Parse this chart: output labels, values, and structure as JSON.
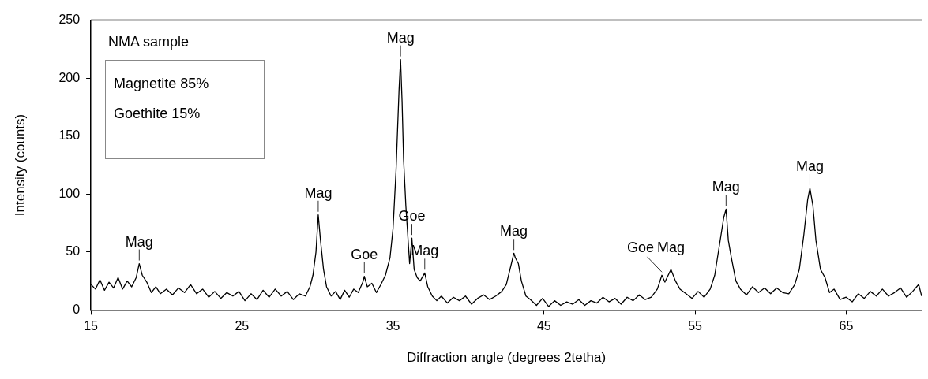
{
  "chart_data": {
    "type": "line",
    "xlabel": "Diffraction angle (degrees 2tetha)",
    "ylabel": "Intensity (counts)",
    "xlim": [
      15,
      70
    ],
    "xticks": [
      15,
      25,
      35,
      45,
      55,
      65
    ],
    "ylim": [
      0,
      250
    ],
    "yticks": [
      0,
      50,
      100,
      150,
      200,
      250
    ],
    "grid": false,
    "legend": false,
    "marker": "none",
    "line_style": "solid",
    "series": [
      {
        "color": "#000000",
        "x": [
          15,
          15.3,
          15.6,
          15.9,
          16.2,
          16.5,
          16.8,
          17.1,
          17.4,
          17.7,
          18.0,
          18.2,
          18.4,
          18.7,
          19.0,
          19.3,
          19.6,
          20.0,
          20.4,
          20.8,
          21.2,
          21.6,
          22.0,
          22.4,
          22.8,
          23.2,
          23.6,
          24.0,
          24.4,
          24.8,
          25.2,
          25.6,
          26.0,
          26.4,
          26.8,
          27.2,
          27.6,
          28.0,
          28.4,
          28.8,
          29.2,
          29.5,
          29.7,
          29.9,
          30.05,
          30.2,
          30.4,
          30.6,
          30.9,
          31.2,
          31.5,
          31.8,
          32.1,
          32.4,
          32.7,
          33.0,
          33.1,
          33.3,
          33.6,
          33.9,
          34.2,
          34.5,
          34.8,
          35.0,
          35.2,
          35.4,
          35.5,
          35.6,
          35.7,
          35.85,
          36.0,
          36.1,
          36.25,
          36.4,
          36.6,
          36.8,
          37.1,
          37.3,
          37.6,
          37.9,
          38.2,
          38.6,
          39.0,
          39.4,
          39.8,
          40.2,
          40.6,
          41.0,
          41.4,
          41.8,
          42.2,
          42.5,
          42.8,
          43.0,
          43.1,
          43.3,
          43.5,
          43.8,
          44.1,
          44.5,
          44.9,
          45.3,
          45.7,
          46.1,
          46.5,
          46.9,
          47.3,
          47.7,
          48.1,
          48.5,
          48.9,
          49.3,
          49.7,
          50.1,
          50.5,
          50.9,
          51.3,
          51.7,
          52.1,
          52.5,
          52.8,
          53.0,
          53.4,
          53.7,
          54.0,
          54.4,
          54.8,
          55.2,
          55.6,
          56.0,
          56.3,
          56.6,
          56.9,
          57.05,
          57.2,
          57.4,
          57.7,
          58.0,
          58.4,
          58.8,
          59.2,
          59.6,
          60.0,
          60.4,
          60.8,
          61.2,
          61.6,
          61.9,
          62.2,
          62.45,
          62.6,
          62.8,
          63.0,
          63.3,
          63.6,
          63.9,
          64.2,
          64.6,
          65.0,
          65.4,
          65.8,
          66.2,
          66.6,
          67.0,
          67.4,
          67.8,
          68.2,
          68.6,
          69.0,
          69.4,
          69.8,
          70.0
        ],
        "values": [
          22,
          18,
          26,
          17,
          24,
          19,
          28,
          18,
          25,
          20,
          28,
          40,
          30,
          24,
          15,
          20,
          14,
          18,
          13,
          19,
          15,
          22,
          14,
          18,
          11,
          16,
          10,
          15,
          12,
          16,
          8,
          14,
          9,
          17,
          11,
          18,
          12,
          16,
          9,
          14,
          12,
          20,
          30,
          50,
          82,
          60,
          35,
          20,
          12,
          16,
          9,
          17,
          11,
          18,
          15,
          24,
          29,
          20,
          23,
          15,
          22,
          30,
          45,
          70,
          120,
          190,
          216,
          180,
          130,
          90,
          60,
          40,
          62,
          35,
          28,
          25,
          32,
          20,
          12,
          8,
          12,
          6,
          11,
          8,
          12,
          5,
          10,
          13,
          9,
          12,
          16,
          22,
          38,
          49,
          45,
          40,
          25,
          12,
          9,
          4,
          10,
          3,
          8,
          4,
          7,
          5,
          9,
          4,
          8,
          6,
          11,
          7,
          10,
          5,
          11,
          8,
          13,
          9,
          11,
          18,
          30,
          24,
          35,
          25,
          18,
          14,
          10,
          16,
          11,
          18,
          30,
          55,
          80,
          87,
          60,
          45,
          25,
          18,
          13,
          20,
          15,
          19,
          14,
          19,
          15,
          14,
          22,
          35,
          65,
          95,
          105,
          90,
          60,
          35,
          28,
          15,
          18,
          9,
          11,
          7,
          14,
          10,
          16,
          12,
          18,
          12,
          15,
          19,
          11,
          16,
          22,
          12
        ]
      }
    ],
    "annotations": [
      "NMA sample",
      "Magnetite 85%",
      "Goethite 15%",
      {
        "text": "Mag",
        "x": 18.2,
        "y": 40
      },
      {
        "text": "Mag",
        "x": 30.05,
        "y": 82
      },
      {
        "text": "Goe",
        "x": 33.1,
        "y": 29
      },
      {
        "text": "Mag",
        "x": 35.5,
        "y": 216
      },
      {
        "text": "Goe",
        "x": 36.25,
        "y": 62
      },
      {
        "text": "Mag",
        "x": 37.1,
        "y": 32
      },
      {
        "text": "Mag",
        "x": 43.0,
        "y": 49
      },
      {
        "text": "Goe",
        "x": 52.8,
        "y": 30
      },
      {
        "text": "Mag",
        "x": 53.4,
        "y": 35
      },
      {
        "text": "Mag",
        "x": 57.05,
        "y": 87
      },
      {
        "text": "Mag",
        "x": 62.6,
        "y": 105
      }
    ]
  }
}
